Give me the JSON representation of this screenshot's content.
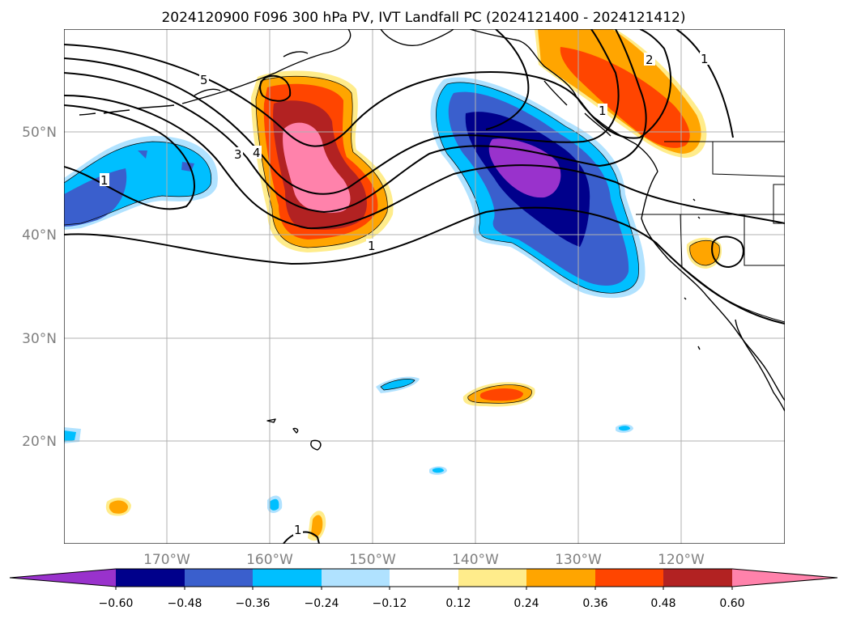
{
  "title": "2024120900 F096 300 hPa PV, IVT Landfall PC (2024121400 - 2024121412)",
  "lon_labels": [
    "170°W",
    "160°W",
    "150°W",
    "140°W",
    "130°W",
    "120°W"
  ],
  "lat_labels": [
    "50°N",
    "40°N",
    "30°N",
    "20°N"
  ],
  "colorbar": {
    "ticks": [
      "−0.60",
      "−0.48",
      "−0.36",
      "−0.24",
      "−0.12",
      "0.12",
      "0.24",
      "0.36",
      "0.48",
      "0.60"
    ],
    "colors": [
      "#9932cc",
      "#00008b",
      "#3a5fcd",
      "#00bfff",
      "#b0e2ff",
      "#ffffff",
      "#ffec8b",
      "#ffa500",
      "#ff4500",
      "#b22222",
      "#ff82ab"
    ]
  },
  "contour_labels": [
    "1",
    "1",
    "2",
    "3",
    "4",
    "5",
    "1",
    "1",
    "1"
  ],
  "colors": {
    "neg_1": "#9932cc",
    "neg_2": "#00008b",
    "neg_3": "#3a5fcd",
    "neg_4": "#00bfff",
    "neg_5": "#b0e2ff",
    "pos_1": "#ffec8b",
    "pos_2": "#ffa500",
    "pos_3": "#ff4500",
    "pos_4": "#b22222",
    "pos_5": "#ff82ab"
  }
}
